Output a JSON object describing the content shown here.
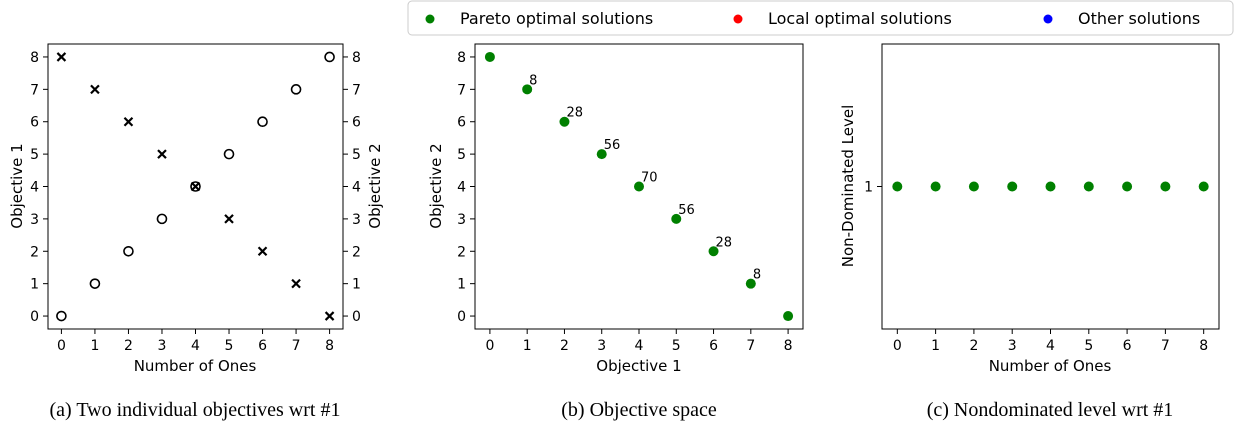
{
  "legend": {
    "items": [
      {
        "label": "Pareto optimal solutions",
        "color": "#008000"
      },
      {
        "label": "Local optimal solutions",
        "color": "#ff0000"
      },
      {
        "label": "Other solutions",
        "color": "#0000ff"
      }
    ]
  },
  "chart_data": [
    {
      "type": "scatter",
      "caption": "(a) Two individual objectives wrt #1",
      "xlabel": "Number of Ones",
      "ylabel": "Objective 1",
      "ylabel_right": "Objective 2",
      "xlim": [
        -0.4,
        8.4
      ],
      "ylim": [
        -0.4,
        8.4
      ],
      "xticks": [
        "0",
        "1",
        "2",
        "3",
        "4",
        "5",
        "6",
        "7",
        "8"
      ],
      "yticks": [
        "0",
        "1",
        "2",
        "3",
        "4",
        "5",
        "6",
        "7",
        "8"
      ],
      "yticks_right": [
        "0",
        "1",
        "2",
        "3",
        "4",
        "5",
        "6",
        "7",
        "8"
      ],
      "series": [
        {
          "marker": "circle",
          "x": [
            0,
            1,
            2,
            3,
            4,
            5,
            6,
            7,
            8
          ],
          "y": [
            0,
            1,
            2,
            3,
            4,
            5,
            6,
            7,
            8
          ]
        },
        {
          "marker": "cross",
          "x": [
            0,
            1,
            2,
            3,
            4,
            5,
            6,
            7,
            8
          ],
          "y": [
            8,
            7,
            6,
            5,
            4,
            3,
            2,
            1,
            0
          ]
        }
      ]
    },
    {
      "type": "scatter",
      "caption": "(b) Objective space",
      "xlabel": "Objective 1",
      "ylabel": "Objective 2",
      "xlim": [
        -0.4,
        8.4
      ],
      "ylim": [
        -0.4,
        8.4
      ],
      "xticks": [
        "0",
        "1",
        "2",
        "3",
        "4",
        "5",
        "6",
        "7",
        "8"
      ],
      "yticks": [
        "0",
        "1",
        "2",
        "3",
        "4",
        "5",
        "6",
        "7",
        "8"
      ],
      "series": [
        {
          "marker": "dot",
          "color": "#008000",
          "x": [
            0,
            1,
            2,
            3,
            4,
            5,
            6,
            7,
            8
          ],
          "y": [
            8,
            7,
            6,
            5,
            4,
            3,
            2,
            1,
            0
          ],
          "labels": [
            "",
            "8",
            "28",
            "56",
            "70",
            "56",
            "28",
            "8",
            ""
          ]
        }
      ]
    },
    {
      "type": "scatter",
      "caption": "(c) Nondominated level wrt #1",
      "xlabel": "Number of Ones",
      "ylabel": "Non-Dominated Level",
      "xlim": [
        -0.4,
        8.4
      ],
      "ylim": [
        0.5,
        1.5
      ],
      "xticks": [
        "0",
        "1",
        "2",
        "3",
        "4",
        "5",
        "6",
        "7",
        "8"
      ],
      "yticks": [
        "1"
      ],
      "series": [
        {
          "marker": "dot",
          "color": "#008000",
          "x": [
            0,
            1,
            2,
            3,
            4,
            5,
            6,
            7,
            8
          ],
          "y": [
            1,
            1,
            1,
            1,
            1,
            1,
            1,
            1,
            1
          ]
        }
      ]
    }
  ]
}
